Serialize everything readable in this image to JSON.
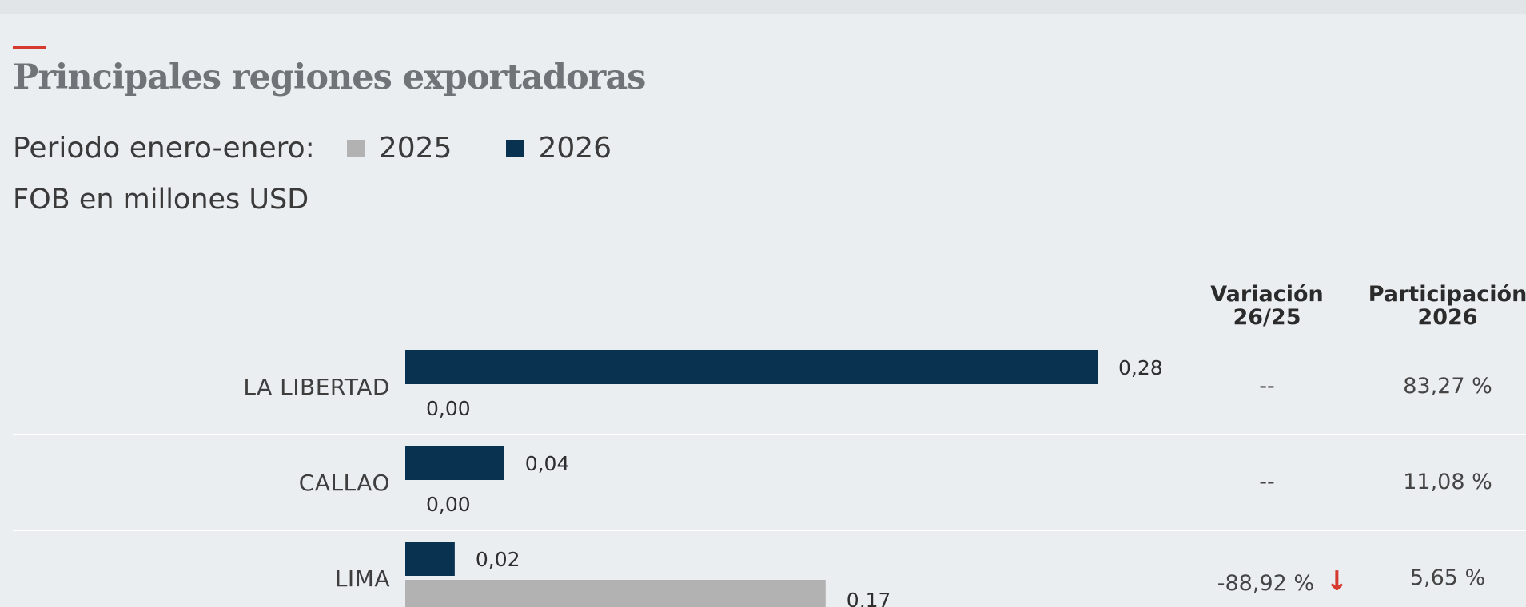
{
  "title": "Principales regiones exportadoras",
  "legend": {
    "prefix": "Periodo enero-enero:",
    "series": [
      {
        "label": "2025",
        "color": "#b2b2b2"
      },
      {
        "label": "2026",
        "color": "#08324f"
      }
    ]
  },
  "unit_label": "FOB en millones USD",
  "columns": {
    "variation": [
      "Variación",
      "26/25"
    ],
    "share": [
      "Participación",
      "2026"
    ]
  },
  "colors": {
    "accent": "#d63a2f",
    "bar_2026": "#08324f",
    "bar_2025": "#b2b2b2",
    "down_arrow": "#d63a2f"
  },
  "chart_data": {
    "type": "bar",
    "orientation": "horizontal",
    "title": "Principales regiones exportadoras",
    "xlabel": "FOB en millones USD",
    "categories": [
      "LA LIBERTAD",
      "CALLAO",
      "LIMA"
    ],
    "series": [
      {
        "name": "2026",
        "values": [
          0.28,
          0.04,
          0.02
        ],
        "labels": [
          "0,28",
          "0,04",
          "0,02"
        ]
      },
      {
        "name": "2025",
        "values": [
          0.0,
          0.0,
          0.17
        ],
        "labels": [
          "0,00",
          "0,00",
          "0,17"
        ]
      }
    ],
    "variation": [
      "--",
      "--",
      "-88,92 %"
    ],
    "variation_direction": [
      null,
      null,
      "down"
    ],
    "share_2026": [
      "83,27 %",
      "11,08 %",
      "5,65 %"
    ],
    "xlim": [
      0,
      0.28
    ]
  }
}
